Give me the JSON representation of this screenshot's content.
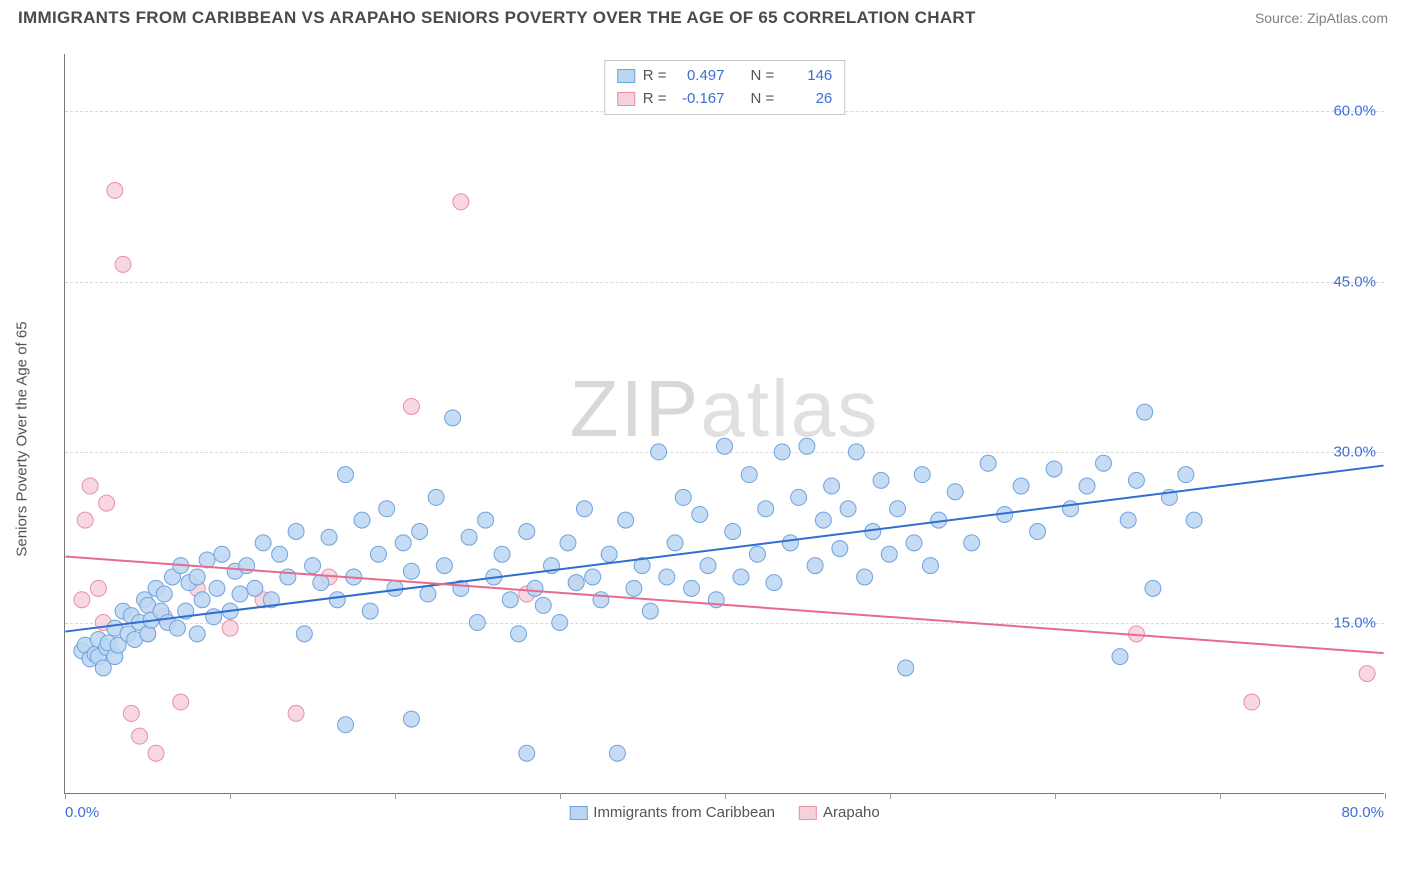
{
  "header": {
    "title": "IMMIGRANTS FROM CARIBBEAN VS ARAPAHO SENIORS POVERTY OVER THE AGE OF 65 CORRELATION CHART",
    "source_prefix": "Source: ",
    "source_name": "ZipAtlas.com"
  },
  "y_axis": {
    "label": "Seniors Poverty Over the Age of 65"
  },
  "watermark": {
    "part1": "ZIP",
    "part2": "atlas"
  },
  "chart": {
    "type": "scatter-with-regression",
    "xlim": [
      0,
      80
    ],
    "ylim": [
      0,
      65
    ],
    "x_min_label": "0.0%",
    "x_max_label": "80.0%",
    "x_tick_positions": [
      0,
      10,
      20,
      30,
      40,
      50,
      60,
      70,
      80
    ],
    "y_grid": [
      {
        "value": 15,
        "label": "15.0%"
      },
      {
        "value": 30,
        "label": "30.0%"
      },
      {
        "value": 45,
        "label": "45.0%"
      },
      {
        "value": 60,
        "label": "60.0%"
      }
    ],
    "background_color": "#ffffff",
    "grid_color": "#d9d9d9",
    "axis_color": "#777777",
    "tick_label_color": "#3b6fd8",
    "series": [
      {
        "name": "Immigrants from Caribbean",
        "marker_fill": "#bcd6f2",
        "marker_stroke": "#6fa3dd",
        "marker_radius": 8,
        "marker_opacity": 0.85,
        "line_color": "#2f6fd0",
        "line_width": 2,
        "regression": {
          "x0": 0,
          "y0": 14.2,
          "x1": 80,
          "y1": 28.8
        },
        "r": "0.497",
        "n": "146",
        "points": [
          [
            1,
            12.5
          ],
          [
            1.2,
            13
          ],
          [
            1.5,
            11.8
          ],
          [
            1.8,
            12.2
          ],
          [
            2,
            13.5
          ],
          [
            2,
            12
          ],
          [
            2.3,
            11
          ],
          [
            2.5,
            12.8
          ],
          [
            2.6,
            13.2
          ],
          [
            3,
            12
          ],
          [
            3,
            14.5
          ],
          [
            3.2,
            13
          ],
          [
            3.5,
            16
          ],
          [
            3.8,
            14
          ],
          [
            4,
            15.6
          ],
          [
            4.2,
            13.5
          ],
          [
            4.5,
            15
          ],
          [
            4.8,
            17
          ],
          [
            5,
            14
          ],
          [
            5,
            16.5
          ],
          [
            5.2,
            15.2
          ],
          [
            5.5,
            18
          ],
          [
            5.8,
            16
          ],
          [
            6,
            17.5
          ],
          [
            6.2,
            15
          ],
          [
            6.5,
            19
          ],
          [
            6.8,
            14.5
          ],
          [
            7,
            20
          ],
          [
            7.3,
            16
          ],
          [
            7.5,
            18.5
          ],
          [
            8,
            14
          ],
          [
            8,
            19
          ],
          [
            8.3,
            17
          ],
          [
            8.6,
            20.5
          ],
          [
            9,
            15.5
          ],
          [
            9.2,
            18
          ],
          [
            9.5,
            21
          ],
          [
            10,
            16
          ],
          [
            10.3,
            19.5
          ],
          [
            10.6,
            17.5
          ],
          [
            11,
            20
          ],
          [
            11.5,
            18
          ],
          [
            12,
            22
          ],
          [
            12.5,
            17
          ],
          [
            13,
            21
          ],
          [
            13.5,
            19
          ],
          [
            14,
            23
          ],
          [
            14.5,
            14
          ],
          [
            15,
            20
          ],
          [
            15.5,
            18.5
          ],
          [
            16,
            22.5
          ],
          [
            16.5,
            17
          ],
          [
            17,
            28
          ],
          [
            17.5,
            19
          ],
          [
            18,
            24
          ],
          [
            18.5,
            16
          ],
          [
            19,
            21
          ],
          [
            19.5,
            25
          ],
          [
            20,
            18
          ],
          [
            20.5,
            22
          ],
          [
            21,
            19.5
          ],
          [
            21.5,
            23
          ],
          [
            22,
            17.5
          ],
          [
            22.5,
            26
          ],
          [
            23,
            20
          ],
          [
            23.5,
            33
          ],
          [
            24,
            18
          ],
          [
            24.5,
            22.5
          ],
          [
            25,
            15
          ],
          [
            25.5,
            24
          ],
          [
            26,
            19
          ],
          [
            26.5,
            21
          ],
          [
            27,
            17
          ],
          [
            27.5,
            14
          ],
          [
            28,
            23
          ],
          [
            28.5,
            18
          ],
          [
            29,
            16.5
          ],
          [
            29.5,
            20
          ],
          [
            30,
            15
          ],
          [
            30.5,
            22
          ],
          [
            31,
            18.5
          ],
          [
            31.5,
            25
          ],
          [
            32,
            19
          ],
          [
            32.5,
            17
          ],
          [
            33,
            21
          ],
          [
            33.5,
            3.5
          ],
          [
            34,
            24
          ],
          [
            34.5,
            18
          ],
          [
            35,
            20
          ],
          [
            35.5,
            16
          ],
          [
            36,
            30
          ],
          [
            36.5,
            19
          ],
          [
            37,
            22
          ],
          [
            37.5,
            26
          ],
          [
            38,
            18
          ],
          [
            38.5,
            24.5
          ],
          [
            39,
            20
          ],
          [
            39.5,
            17
          ],
          [
            40,
            30.5
          ],
          [
            40.5,
            23
          ],
          [
            41,
            19
          ],
          [
            41.5,
            28
          ],
          [
            42,
            21
          ],
          [
            42.5,
            25
          ],
          [
            43,
            18.5
          ],
          [
            43.5,
            30
          ],
          [
            44,
            22
          ],
          [
            44.5,
            26
          ],
          [
            45,
            30.5
          ],
          [
            45.5,
            20
          ],
          [
            46,
            24
          ],
          [
            46.5,
            27
          ],
          [
            47,
            21.5
          ],
          [
            47.5,
            25
          ],
          [
            48,
            30
          ],
          [
            48.5,
            19
          ],
          [
            49,
            23
          ],
          [
            49.5,
            27.5
          ],
          [
            50,
            21
          ],
          [
            50.5,
            25
          ],
          [
            51,
            11
          ],
          [
            51.5,
            22
          ],
          [
            52,
            28
          ],
          [
            52.5,
            20
          ],
          [
            53,
            24
          ],
          [
            54,
            26.5
          ],
          [
            55,
            22
          ],
          [
            56,
            29
          ],
          [
            57,
            24.5
          ],
          [
            58,
            27
          ],
          [
            59,
            23
          ],
          [
            60,
            28.5
          ],
          [
            61,
            25
          ],
          [
            62,
            27
          ],
          [
            63,
            29
          ],
          [
            64,
            12
          ],
          [
            64.5,
            24
          ],
          [
            65,
            27.5
          ],
          [
            65.5,
            33.5
          ],
          [
            66,
            18
          ],
          [
            67,
            26
          ],
          [
            68,
            28
          ],
          [
            68.5,
            24
          ],
          [
            17,
            6
          ],
          [
            21,
            6.5
          ],
          [
            28,
            3.5
          ]
        ]
      },
      {
        "name": "Arapaho",
        "marker_fill": "#f7d1da",
        "marker_stroke": "#e98fa8",
        "marker_radius": 8,
        "marker_opacity": 0.85,
        "line_color": "#e86b8f",
        "line_width": 2,
        "regression": {
          "x0": 0,
          "y0": 20.8,
          "x1": 80,
          "y1": 12.3
        },
        "r": "-0.167",
        "n": "26",
        "points": [
          [
            1,
            17
          ],
          [
            1.2,
            24
          ],
          [
            1.5,
            27
          ],
          [
            2,
            18
          ],
          [
            2.3,
            15
          ],
          [
            2.5,
            25.5
          ],
          [
            3,
            53
          ],
          [
            3.5,
            46.5
          ],
          [
            4,
            7
          ],
          [
            4.5,
            5
          ],
          [
            5,
            14
          ],
          [
            5.5,
            3.5
          ],
          [
            6,
            15.5
          ],
          [
            7,
            8
          ],
          [
            8,
            18
          ],
          [
            10,
            14.5
          ],
          [
            12,
            17
          ],
          [
            14,
            7
          ],
          [
            16,
            19
          ],
          [
            21,
            34
          ],
          [
            24,
            52
          ],
          [
            28,
            17.5
          ],
          [
            31,
            18.5
          ],
          [
            65,
            14
          ],
          [
            72,
            8
          ],
          [
            79,
            10.5
          ]
        ]
      }
    ]
  },
  "corr_legend": {
    "r_label": "R =",
    "n_label": "N ="
  }
}
